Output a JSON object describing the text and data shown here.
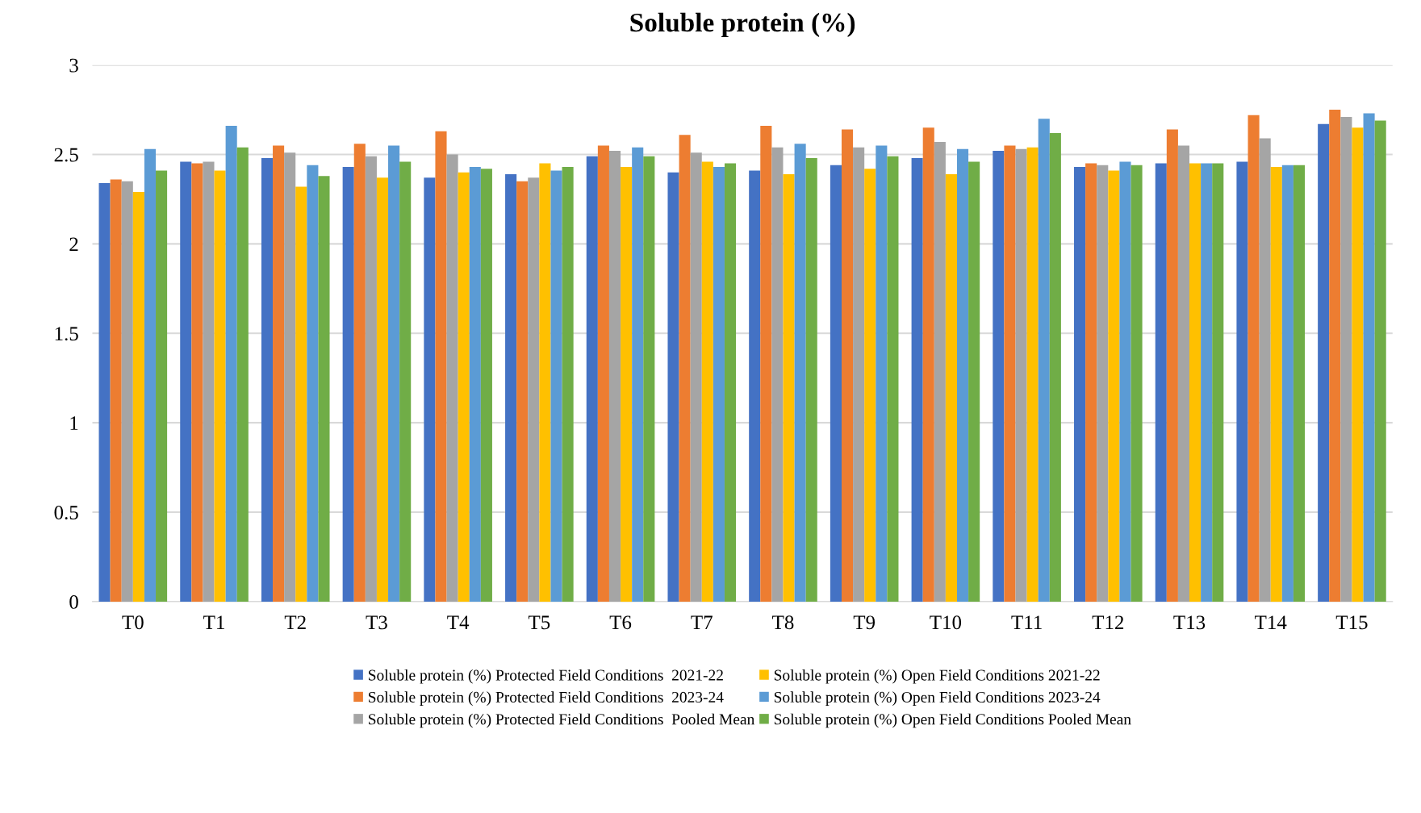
{
  "chart_data": {
    "type": "bar",
    "title": "Soluble protein (%)",
    "categories": [
      "T0",
      "T1",
      "T2",
      "T3",
      "T4",
      "T5",
      "T6",
      "T7",
      "T8",
      "T9",
      "T10",
      "T11",
      "T12",
      "T13",
      "T14",
      "T15"
    ],
    "series": [
      {
        "name": "Soluble protein (%) Protected Field Conditions  2021-22",
        "color": "#4472c4",
        "values": [
          2.34,
          2.46,
          2.48,
          2.43,
          2.37,
          2.39,
          2.49,
          2.4,
          2.41,
          2.44,
          2.48,
          2.52,
          2.43,
          2.45,
          2.46,
          2.67
        ]
      },
      {
        "name": "Soluble protein (%) Protected Field Conditions  2023-24",
        "color": "#ed7d31",
        "values": [
          2.36,
          2.45,
          2.55,
          2.56,
          2.63,
          2.35,
          2.55,
          2.61,
          2.66,
          2.64,
          2.65,
          2.55,
          2.45,
          2.64,
          2.72,
          2.75
        ]
      },
      {
        "name": "Soluble protein (%) Protected Field Conditions  Pooled Mean",
        "color": "#a5a5a5",
        "values": [
          2.35,
          2.46,
          2.51,
          2.49,
          2.5,
          2.37,
          2.52,
          2.51,
          2.54,
          2.54,
          2.57,
          2.53,
          2.44,
          2.55,
          2.59,
          2.71
        ]
      },
      {
        "name": "Soluble protein (%) Open Field Conditions 2021-22",
        "color": "#ffc000",
        "values": [
          2.29,
          2.41,
          2.32,
          2.37,
          2.4,
          2.45,
          2.43,
          2.46,
          2.39,
          2.42,
          2.39,
          2.54,
          2.41,
          2.45,
          2.43,
          2.65
        ]
      },
      {
        "name": "Soluble protein (%) Open Field Conditions 2023-24",
        "color": "#5b9bd5",
        "values": [
          2.53,
          2.66,
          2.44,
          2.55,
          2.43,
          2.41,
          2.54,
          2.43,
          2.56,
          2.55,
          2.53,
          2.7,
          2.46,
          2.45,
          2.44,
          2.73
        ]
      },
      {
        "name": "Soluble protein (%) Open Field Conditions Pooled Mean",
        "color": "#70ad47",
        "values": [
          2.41,
          2.54,
          2.38,
          2.46,
          2.42,
          2.43,
          2.49,
          2.45,
          2.48,
          2.49,
          2.46,
          2.62,
          2.44,
          2.45,
          2.44,
          2.69
        ]
      }
    ],
    "ylim": [
      0,
      3
    ],
    "yticks": [
      0,
      0.5,
      1,
      1.5,
      2,
      2.5,
      3
    ],
    "grid": "y",
    "legend": "bottom"
  }
}
